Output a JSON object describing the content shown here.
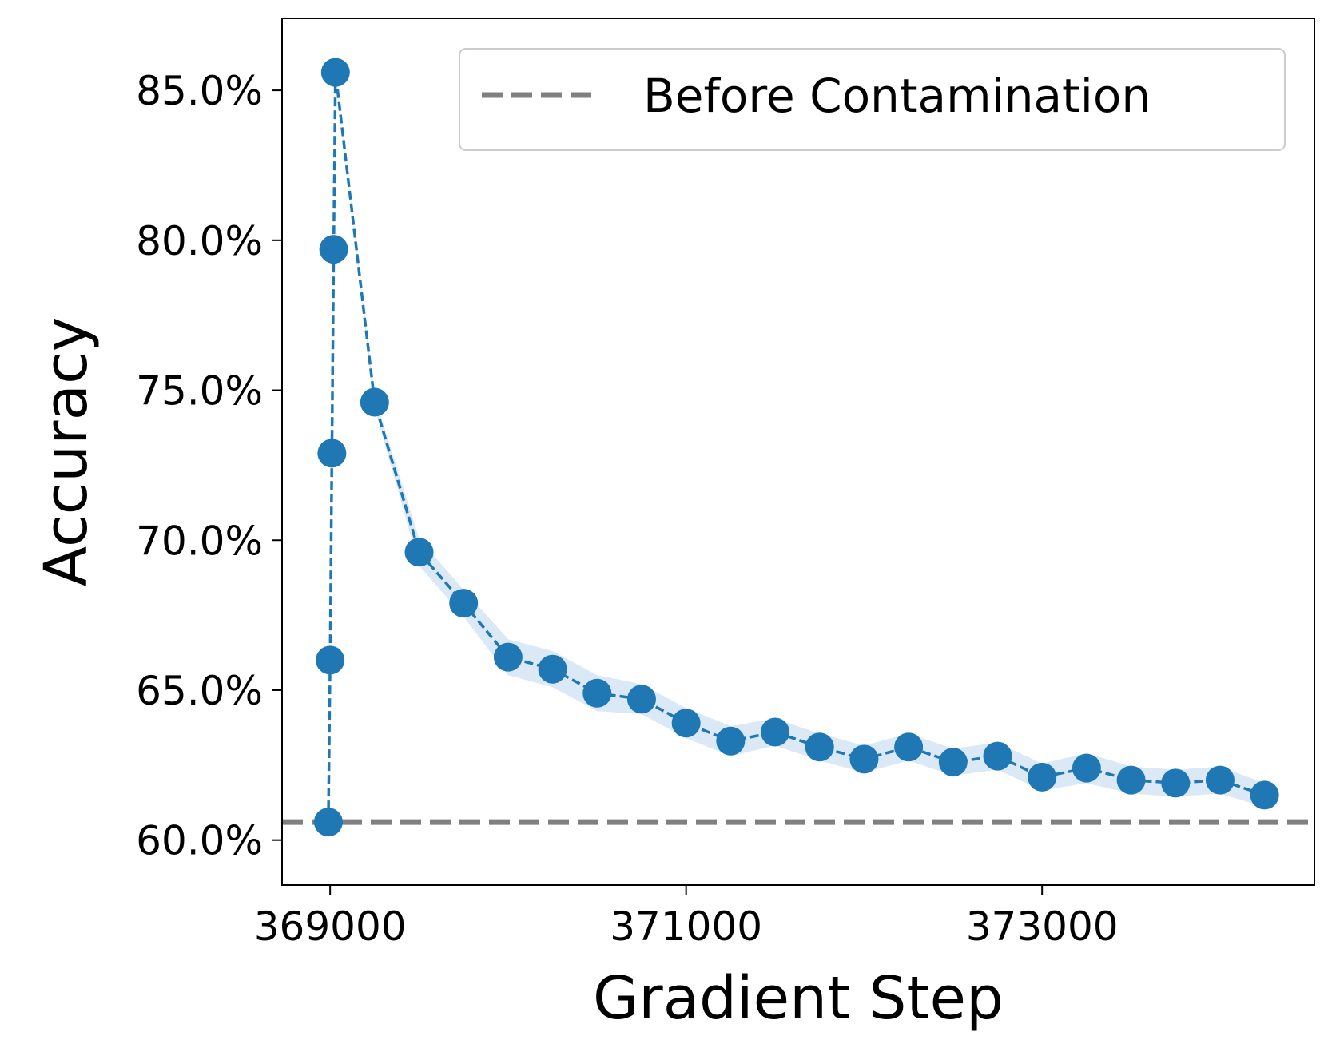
{
  "chart_data": {
    "type": "line",
    "xlabel": "Gradient Step",
    "ylabel": "Accuracy",
    "xlim": [
      368730,
      374530
    ],
    "ylim": [
      58.5,
      87.4
    ],
    "xticks": [
      369000,
      371000,
      373000
    ],
    "xtick_labels": [
      "369000",
      "371000",
      "373000"
    ],
    "yticks": [
      60,
      65,
      70,
      75,
      80,
      85
    ],
    "ytick_labels": [
      "60.0%",
      "65.0%",
      "70.0%",
      "75.0%",
      "80.0%",
      "85.0%"
    ],
    "grid": false,
    "legend": {
      "placement": "top-right",
      "entries": [
        {
          "label": "Before Contamination",
          "style": "dashed",
          "color": "#808080"
        }
      ]
    },
    "baseline": {
      "name": "Before Contamination",
      "value": 60.6,
      "color": "#808080"
    },
    "series": [
      {
        "color": "#1f77b4",
        "band_color": "#dbe9f6",
        "x": [
          368990,
          369000,
          369010,
          369020,
          369030,
          369250,
          369500,
          369750,
          370000,
          370250,
          370500,
          370750,
          371000,
          371250,
          371500,
          371750,
          372000,
          372250,
          372500,
          372750,
          373000,
          373250,
          373500,
          373750,
          374000,
          374250
        ],
        "y": [
          60.6,
          66.0,
          72.9,
          79.7,
          85.6,
          74.6,
          69.6,
          67.9,
          66.1,
          65.7,
          64.9,
          64.7,
          63.9,
          63.3,
          63.6,
          63.1,
          62.7,
          63.1,
          62.6,
          62.8,
          62.1,
          62.4,
          62.0,
          61.9,
          62.0,
          61.5
        ],
        "band_halfwidth": [
          0,
          0,
          0,
          0,
          0,
          0.2,
          0.45,
          0.45,
          0.6,
          0.6,
          0.6,
          0.5,
          0.5,
          0.5,
          0.45,
          0.45,
          0.45,
          0.45,
          0.45,
          0.45,
          0.45,
          0.5,
          0.45,
          0.45,
          0.45,
          0.4
        ]
      }
    ]
  }
}
